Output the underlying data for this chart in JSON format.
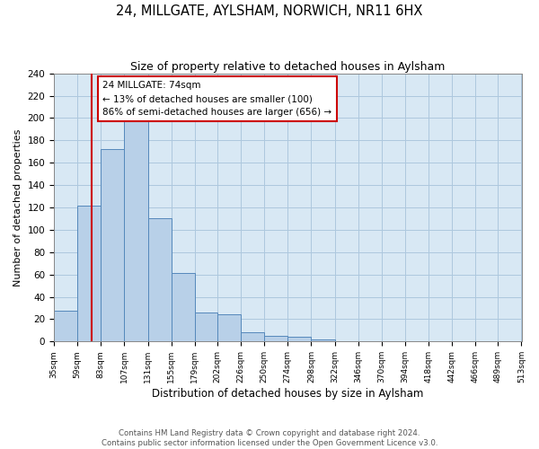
{
  "title": "24, MILLGATE, AYLSHAM, NORWICH, NR11 6HX",
  "subtitle": "Size of property relative to detached houses in Aylsham",
  "xlabel": "Distribution of detached houses by size in Aylsham",
  "ylabel": "Number of detached properties",
  "bin_edges": [
    35,
    59,
    83,
    107,
    131,
    155,
    179,
    202,
    226,
    250,
    274,
    298,
    322,
    346,
    370,
    394,
    418,
    442,
    466,
    489,
    513
  ],
  "bar_heights": [
    28,
    122,
    172,
    198,
    110,
    61,
    26,
    24,
    8,
    5,
    4,
    2,
    0,
    0,
    0,
    0,
    0,
    0,
    0,
    0
  ],
  "bar_color": "#b8d0e8",
  "bar_edgecolor": "#5588bb",
  "vline_x": 74,
  "vline_color": "#cc0000",
  "annotation_text": "24 MILLGATE: 74sqm\n← 13% of detached houses are smaller (100)\n86% of semi-detached houses are larger (656) →",
  "annotation_box_edgecolor": "#cc0000",
  "annotation_box_facecolor": "#ffffff",
  "ylim": [
    0,
    240
  ],
  "yticks": [
    0,
    20,
    40,
    60,
    80,
    100,
    120,
    140,
    160,
    180,
    200,
    220,
    240
  ],
  "grid_color": "#adc8de",
  "background_color": "#d8e8f4",
  "footer_line1": "Contains HM Land Registry data © Crown copyright and database right 2024.",
  "footer_line2": "Contains public sector information licensed under the Open Government Licence v3.0."
}
